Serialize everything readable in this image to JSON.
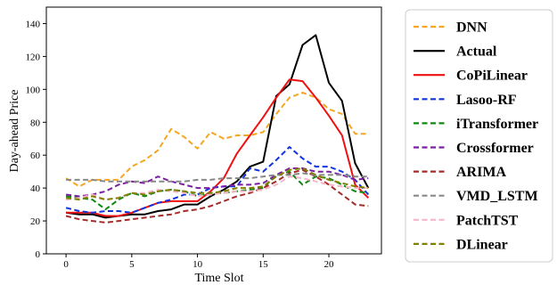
{
  "chart_data": {
    "type": "line",
    "xlabel": "Time Slot",
    "ylabel": "Day-ahead Price",
    "xlim": [
      -1.5,
      24.0
    ],
    "ylim": [
      0,
      150
    ],
    "xticks": [
      0,
      5,
      10,
      15,
      20
    ],
    "yticks": [
      0,
      20,
      40,
      60,
      80,
      100,
      120,
      140
    ],
    "grid": false,
    "legend_position": "right",
    "x": [
      0,
      1,
      2,
      3,
      4,
      5,
      6,
      7,
      8,
      9,
      10,
      11,
      12,
      13,
      14,
      15,
      16,
      17,
      18,
      19,
      20,
      21,
      22,
      23
    ],
    "series": [
      {
        "name": "DNN",
        "color": "#f5a623",
        "dash": "dashed",
        "values": [
          46,
          41,
          45,
          45,
          45,
          53,
          57,
          63,
          76,
          71,
          64,
          74,
          70,
          72,
          72,
          74,
          85,
          95,
          98,
          95,
          88,
          85,
          73,
          73
        ]
      },
      {
        "name": "Actual",
        "color": "#000000",
        "dash": "solid",
        "values": [
          25,
          24,
          24,
          22,
          23,
          24,
          24,
          26,
          27,
          30,
          30,
          35,
          39,
          44,
          53,
          56,
          96,
          103,
          127,
          133,
          104,
          93,
          55,
          40
        ]
      },
      {
        "name": "CoPiLinear",
        "color": "#ee1111",
        "dash": "solid",
        "values": [
          25,
          25,
          25,
          23,
          23,
          25,
          28,
          31,
          32,
          32,
          32,
          38,
          46,
          61,
          72,
          83,
          95,
          106,
          105,
          95,
          84,
          72,
          42,
          34
        ]
      },
      {
        "name": "Lasoo-RF",
        "color": "#1133dd",
        "dash": "dashed",
        "values": [
          28,
          26,
          25,
          26,
          26,
          25,
          28,
          31,
          33,
          36,
          36,
          40,
          41,
          41,
          52,
          50,
          57,
          65,
          58,
          53,
          53,
          50,
          45,
          36
        ]
      },
      {
        "name": "iTransformer",
        "color": "#118811",
        "dash": "dashed",
        "values": [
          35,
          34,
          33,
          27,
          33,
          37,
          35,
          38,
          39,
          38,
          35,
          37,
          37,
          38,
          39,
          40,
          48,
          50,
          42,
          47,
          46,
          42,
          38,
          37
        ]
      },
      {
        "name": "Crossformer",
        "color": "#7b1fa2",
        "dash": "dashed",
        "values": [
          36,
          35,
          36,
          38,
          42,
          44,
          43,
          47,
          44,
          42,
          40,
          40,
          41,
          42,
          42,
          43,
          48,
          52,
          52,
          50,
          50,
          48,
          45,
          46
        ]
      },
      {
        "name": "ARIMA",
        "color": "#a52a2a",
        "dash": "dashed",
        "values": [
          23,
          21,
          20,
          19,
          20,
          21,
          22,
          23,
          24,
          26,
          27,
          29,
          32,
          35,
          37,
          40,
          44,
          49,
          51,
          47,
          42,
          36,
          30,
          29
        ]
      },
      {
        "name": "VMD_LSTM",
        "color": "#888888",
        "dash": "dashed",
        "values": [
          45,
          45,
          45,
          44,
          44,
          44,
          44,
          44,
          44,
          44,
          45,
          45,
          46,
          46,
          46,
          47,
          48,
          48,
          49,
          48,
          48,
          48,
          47,
          47
        ]
      },
      {
        "name": "PatchTST",
        "color": "#f7b6c8",
        "dash": "dashed",
        "values": [
          33,
          34,
          36,
          33,
          34,
          37,
          37,
          39,
          38,
          37,
          35,
          36,
          37,
          38,
          38,
          39,
          42,
          47,
          46,
          44,
          42,
          41,
          40,
          40
        ]
      },
      {
        "name": "DLinear",
        "color": "#808000",
        "dash": "dashed",
        "values": [
          34,
          33,
          35,
          33,
          34,
          37,
          36,
          38,
          39,
          38,
          37,
          37,
          38,
          40,
          40,
          41,
          47,
          51,
          52,
          48,
          45,
          43,
          41,
          40
        ]
      }
    ]
  }
}
